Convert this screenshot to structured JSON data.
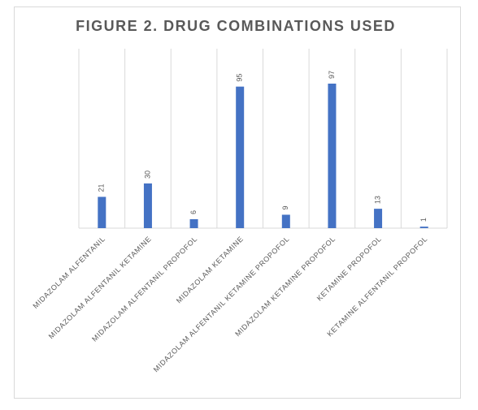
{
  "chart_data": {
    "type": "bar",
    "title": "FIGURE 2. DRUG COMBINATIONS USED",
    "categories": [
      "MIDAZOLAM ALFENTANIL",
      "MIDAZOLAM ALFENTANIL KETAMINE",
      "MIDAZOLAM ALFENTANIL PROPOFOL",
      "MIDAZOLAM KETAMINE",
      "MIDAZOLAM ALFENTANIL KETAMINE PROPOFOL",
      "MIDAZOLAM KETAMINE PROPOFOL",
      "KETAMINE PROPOFOL",
      "KETAMINE ALFENTANIL PROPOFOL"
    ],
    "values": [
      21,
      30,
      6,
      95,
      9,
      97,
      13,
      1
    ],
    "color": "#4472c4",
    "grid": true
  }
}
